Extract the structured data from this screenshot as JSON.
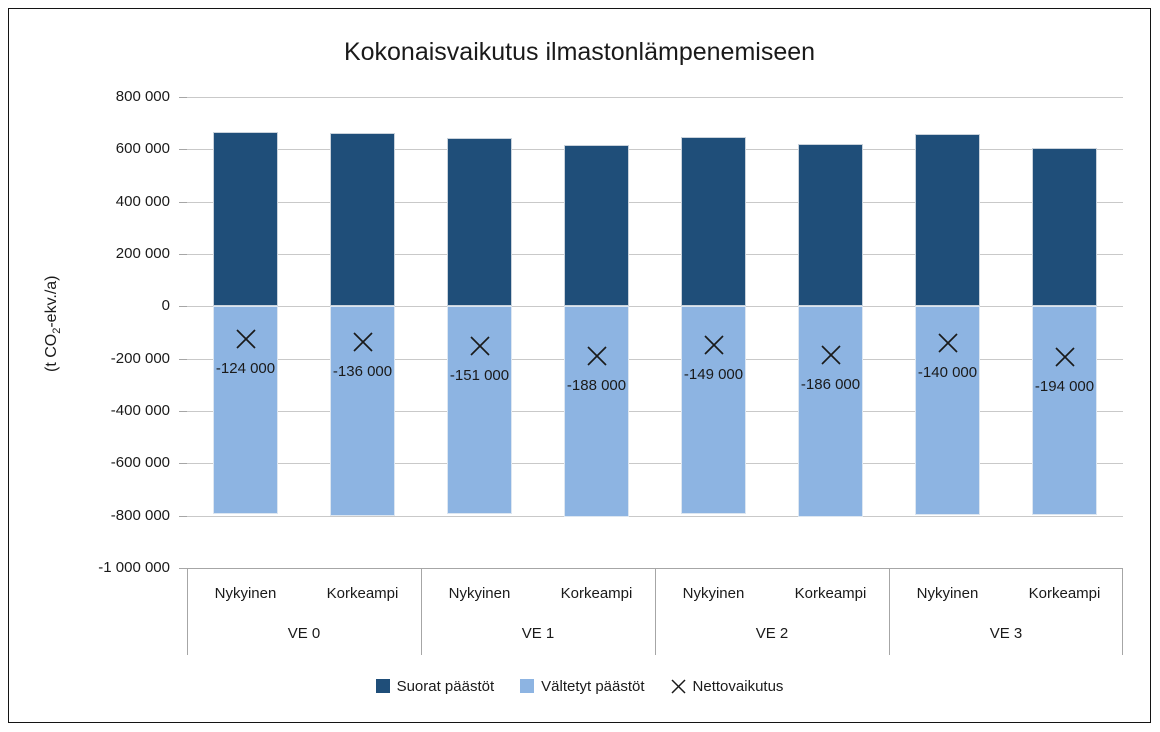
{
  "chart_data": {
    "type": "bar",
    "subtype": "stacked-with-net-marker",
    "title": "Kokonaisvaikutus ilmastonlämpenemiseen",
    "ylabel": "(t CO2-ekv./a)",
    "ylabel_parts": {
      "pre": "(t CO",
      "sub": "2",
      "post": "-ekv./a)"
    },
    "ylim": [
      -1000000,
      800000
    ],
    "grid": true,
    "legend_position": "bottom",
    "yticks": [
      {
        "value": 800000,
        "label": "800 000"
      },
      {
        "value": 600000,
        "label": "600 000"
      },
      {
        "value": 400000,
        "label": "400 000"
      },
      {
        "value": 200000,
        "label": "200 000"
      },
      {
        "value": 0,
        "label": "0"
      },
      {
        "value": -200000,
        "label": "-200 000"
      },
      {
        "value": -400000,
        "label": "-400 000"
      },
      {
        "value": -600000,
        "label": "-600 000"
      },
      {
        "value": -800000,
        "label": "-800 000"
      },
      {
        "value": -1000000,
        "label": "-1 000 000"
      }
    ],
    "groups": [
      {
        "label": "VE 0",
        "categories": [
          "Nykyinen",
          "Korkeampi"
        ]
      },
      {
        "label": "VE 1",
        "categories": [
          "Nykyinen",
          "Korkeampi"
        ]
      },
      {
        "label": "VE 2",
        "categories": [
          "Nykyinen",
          "Korkeampi"
        ]
      },
      {
        "label": "VE 3",
        "categories": [
          "Nykyinen",
          "Korkeampi"
        ]
      }
    ],
    "series": [
      {
        "name": "Suorat päästöt",
        "type": "bar",
        "color": "#1F4E79",
        "values": [
          668000,
          664000,
          643000,
          616000,
          646000,
          620000,
          657000,
          605000
        ]
      },
      {
        "name": "Vältetyt päästöt",
        "type": "bar",
        "color": "#8DB4E2",
        "values": [
          -792000,
          -800000,
          -794000,
          -804000,
          -795000,
          -806000,
          -797000,
          -799000
        ]
      },
      {
        "name": "Nettovaikutus",
        "type": "marker",
        "marker": "x",
        "color": "#1a1a1a",
        "values": [
          -124000,
          -136000,
          -151000,
          -188000,
          -149000,
          -186000,
          -140000,
          -194000
        ],
        "labels": [
          "-124 000",
          "-136 000",
          "-151 000",
          "-188 000",
          "-149 000",
          "-186 000",
          "-140 000",
          "-194 000"
        ]
      }
    ],
    "colors": {
      "grid": "#C9C9C9",
      "axis_lines": "#A6A6A6",
      "text": "#1a1a1a",
      "background": "#ffffff"
    }
  }
}
